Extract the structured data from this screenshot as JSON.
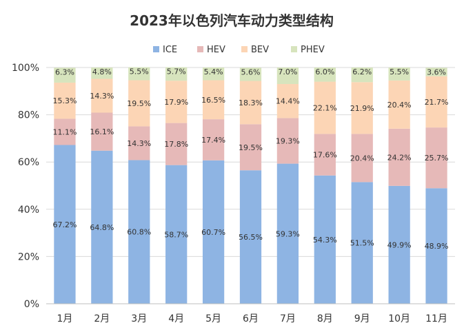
{
  "chart_data": {
    "type": "bar",
    "stacked": true,
    "title": "2023年以色列汽车动力类型结构",
    "xlabel": "",
    "ylabel": "",
    "ylim": [
      0,
      100
    ],
    "y_ticks": [
      "0%",
      "20%",
      "40%",
      "60%",
      "80%",
      "100%"
    ],
    "grid": true,
    "legend_position": "top",
    "categories": [
      "1月",
      "2月",
      "3月",
      "4月",
      "5月",
      "6月",
      "7月",
      "8月",
      "9月",
      "10月",
      "11月"
    ],
    "series": [
      {
        "name": "ICE",
        "color": "#8eb4e3",
        "values": [
          67.2,
          64.8,
          60.8,
          58.7,
          60.7,
          56.5,
          59.3,
          54.3,
          51.5,
          49.9,
          48.9
        ],
        "labels": [
          "67.2%",
          "64.8%",
          "60.8%",
          "58.7%",
          "60.7%",
          "56.5%",
          "59.3%",
          "54.3%",
          "51.5%",
          "49.9%",
          "48.9%"
        ]
      },
      {
        "name": "HEV",
        "color": "#e6b9b8",
        "values": [
          11.1,
          16.1,
          14.3,
          17.8,
          17.4,
          19.5,
          19.3,
          17.6,
          20.4,
          24.2,
          25.7
        ],
        "labels": [
          "11.1%",
          "16.1%",
          "14.3%",
          "17.8%",
          "17.4%",
          "19.5%",
          "19.3%",
          "17.6%",
          "20.4%",
          "24.2%",
          "25.7%"
        ]
      },
      {
        "name": "BEV",
        "color": "#fcd5b5",
        "values": [
          15.3,
          14.3,
          19.5,
          17.9,
          16.5,
          18.3,
          14.4,
          22.1,
          21.9,
          20.4,
          21.7
        ],
        "labels": [
          "15.3%",
          "14.3%",
          "19.5%",
          "17.9%",
          "16.5%",
          "18.3%",
          "14.4%",
          "22.1%",
          "21.9%",
          "20.4%",
          "21.7%"
        ]
      },
      {
        "name": "PHEV",
        "color": "#d7e4bd",
        "values": [
          6.3,
          4.8,
          5.5,
          5.7,
          5.4,
          5.6,
          7.0,
          6.0,
          6.2,
          5.5,
          3.6
        ],
        "labels": [
          "6.3%",
          "4.8%",
          "5.5%",
          "5.7%",
          "5.4%",
          "5.6%",
          "7.0%",
          "6.0%",
          "6.2%",
          "5.5%",
          "3.6%"
        ]
      }
    ]
  }
}
